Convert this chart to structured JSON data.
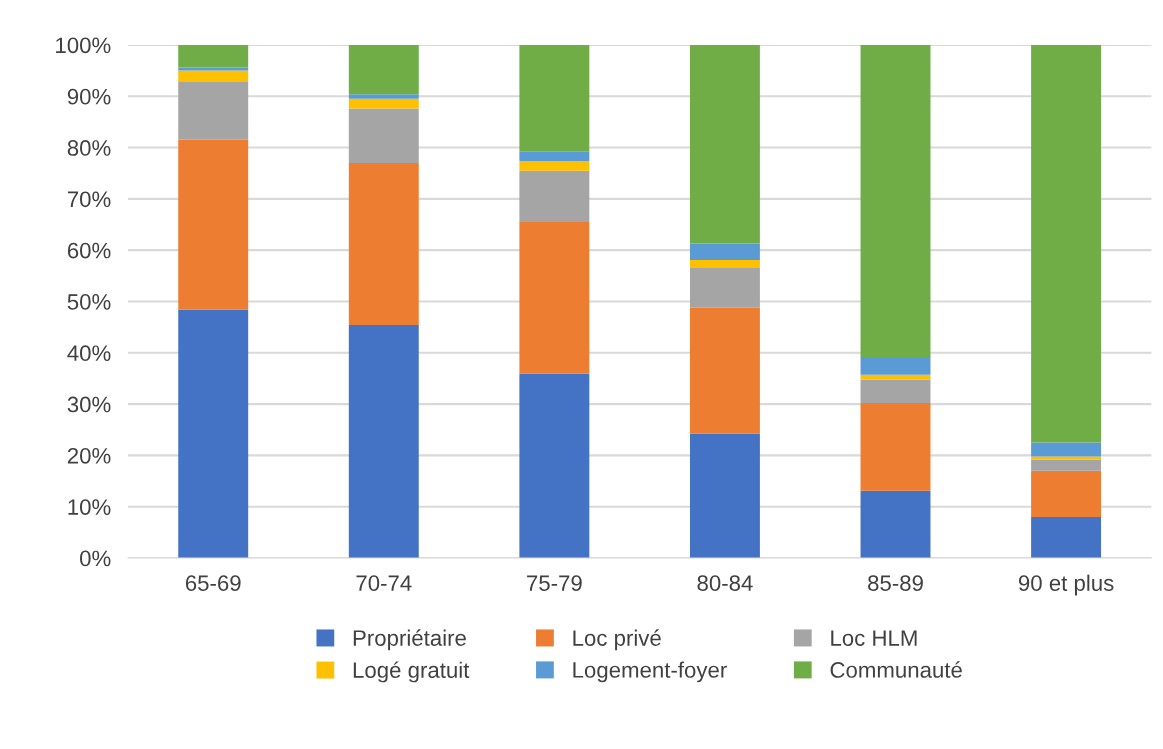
{
  "chart_data": {
    "type": "bar",
    "stacked": true,
    "categories": [
      "65-69",
      "70-74",
      "75-79",
      "80-84",
      "85-89",
      "90 et plus"
    ],
    "series": [
      {
        "name": "Propriétaire",
        "color": "#4472c4",
        "values": [
          48.4,
          45.4,
          35.9,
          24.2,
          13.1,
          8.0
        ]
      },
      {
        "name": "Loc privé",
        "color": "#ed7d31",
        "values": [
          33.1,
          31.6,
          29.6,
          24.6,
          17.1,
          9.0
        ]
      },
      {
        "name": "Loc HLM",
        "color": "#a5a5a5",
        "values": [
          11.3,
          10.6,
          10.0,
          7.7,
          4.6,
          2.2
        ]
      },
      {
        "name": "Logé gratuit",
        "color": "#ffc000",
        "values": [
          2.2,
          1.9,
          1.9,
          1.6,
          0.9,
          0.6
        ]
      },
      {
        "name": "Logement-foyer",
        "color": "#5b9bd5",
        "values": [
          0.6,
          0.9,
          1.8,
          3.2,
          3.5,
          2.7
        ]
      },
      {
        "name": "Communauté",
        "color": "#70ad47",
        "values": [
          4.4,
          9.6,
          20.8,
          38.7,
          60.8,
          77.5
        ]
      }
    ],
    "ylim": [
      0,
      100
    ],
    "yticks": [
      {
        "value": 0,
        "label": "0%"
      },
      {
        "value": 10,
        "label": "10%"
      },
      {
        "value": 20,
        "label": "20%"
      },
      {
        "value": 30,
        "label": "30%"
      },
      {
        "value": 40,
        "label": "40%"
      },
      {
        "value": 50,
        "label": "50%"
      },
      {
        "value": 60,
        "label": "60%"
      },
      {
        "value": 70,
        "label": "70%"
      },
      {
        "value": 80,
        "label": "80%"
      },
      {
        "value": 90,
        "label": "90%"
      },
      {
        "value": 100,
        "label": "100%"
      }
    ],
    "grid": "y",
    "legend": "bottom"
  }
}
